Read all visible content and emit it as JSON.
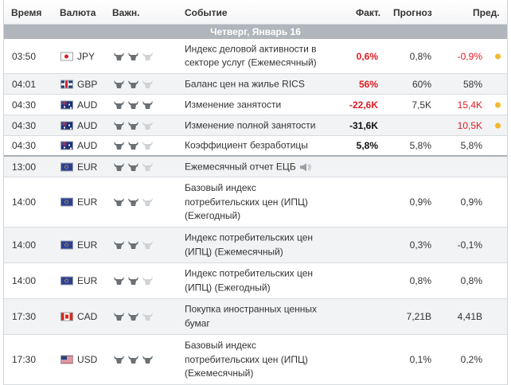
{
  "header": {
    "time": "Время",
    "currency": "Валюта",
    "importance": "Важн.",
    "event": "Событие",
    "actual": "Факт.",
    "forecast": "Прогноз",
    "previous": "Пред."
  },
  "day_label": "Четверг, Январь 16",
  "colors": {
    "negative": "#e01b23",
    "alert_dot": "#f2b92a",
    "day_bar": "#b0b6bb",
    "bull_active": "#6b7075",
    "bull_inactive": "#d0d3d6"
  },
  "events": [
    {
      "time": "03:50",
      "flag": "flag-jp",
      "currency": "JPY",
      "importance": 2,
      "event": "Индекс деловой активности в секторе услуг (Ежемесячный)",
      "actual": "0,6%",
      "actual_color": "red",
      "forecast": "0,8%",
      "previous": "-0,9%",
      "previous_color": "red",
      "dot": true
    },
    {
      "time": "04:01",
      "flag": "flag-gb",
      "currency": "GBP",
      "importance": 2,
      "event": "Баланс цен на жилье RICS",
      "actual": "56%",
      "actual_color": "red",
      "forecast": "60%",
      "previous": "58%",
      "previous_color": "black",
      "dot": false
    },
    {
      "time": "04:30",
      "flag": "flag-au",
      "currency": "AUD",
      "importance": 3,
      "event": "Изменение занятости",
      "actual": "-22,6K",
      "actual_color": "red",
      "forecast": "7,5K",
      "previous": "15,4K",
      "previous_color": "red",
      "dot": true
    },
    {
      "time": "04:30",
      "flag": "flag-au",
      "currency": "AUD",
      "importance": 2,
      "event": "Изменение полной занятости",
      "actual": "-31,6K",
      "actual_color": "black",
      "forecast": "",
      "previous": "10,5K",
      "previous_color": "red",
      "dot": true
    },
    {
      "time": "04:30",
      "flag": "flag-au",
      "currency": "AUD",
      "importance": 2,
      "event": "Коэффициент безработицы",
      "actual": "5,8%",
      "actual_color": "black",
      "forecast": "5,8%",
      "previous": "5,8%",
      "previous_color": "black",
      "dot": false
    },
    {
      "time": "13:00",
      "flag": "flag-eu",
      "currency": "EUR",
      "importance": 2,
      "event": "Ежемесячный отчет ЕЦБ",
      "speaker": "speaker-icon",
      "actual": "",
      "actual_color": "black",
      "forecast": "",
      "previous": "",
      "previous_color": "black",
      "dot": false
    },
    {
      "time": "14:00",
      "flag": "flag-eu",
      "currency": "EUR",
      "importance": 2,
      "event": "Базовый индекс потребительских цен (ИПЦ) (Ежегодный)",
      "actual": "",
      "actual_color": "black",
      "forecast": "0,9%",
      "previous": "0,9%",
      "previous_color": "black",
      "dot": false
    },
    {
      "time": "14:00",
      "flag": "flag-eu",
      "currency": "EUR",
      "importance": 2,
      "event": "Индекс потребительских цен (ИПЦ) (Ежемесячный)",
      "actual": "",
      "actual_color": "black",
      "forecast": "0,3%",
      "previous": "-0,1%",
      "previous_color": "black",
      "dot": false
    },
    {
      "time": "14:00",
      "flag": "flag-eu",
      "currency": "EUR",
      "importance": 2,
      "event": "Индекс потребительских цен (ИПЦ) (Ежегодный)",
      "actual": "",
      "actual_color": "black",
      "forecast": "0,8%",
      "previous": "0,8%",
      "previous_color": "black",
      "dot": false
    },
    {
      "time": "17:30",
      "flag": "flag-ca",
      "currency": "CAD",
      "importance": 2,
      "event": "Покупка иностранных ценных бумаг",
      "actual": "",
      "actual_color": "black",
      "forecast": "7,21B",
      "previous": "4,41B",
      "previous_color": "black",
      "dot": false
    },
    {
      "time": "17:30",
      "flag": "flag-us",
      "currency": "USD",
      "importance": 3,
      "event": "Базовый индекс потребительских цен (ИПЦ) (Ежемесячный)",
      "actual": "",
      "actual_color": "black",
      "forecast": "0,1%",
      "previous": "0,2%",
      "previous_color": "black",
      "dot": false
    }
  ]
}
